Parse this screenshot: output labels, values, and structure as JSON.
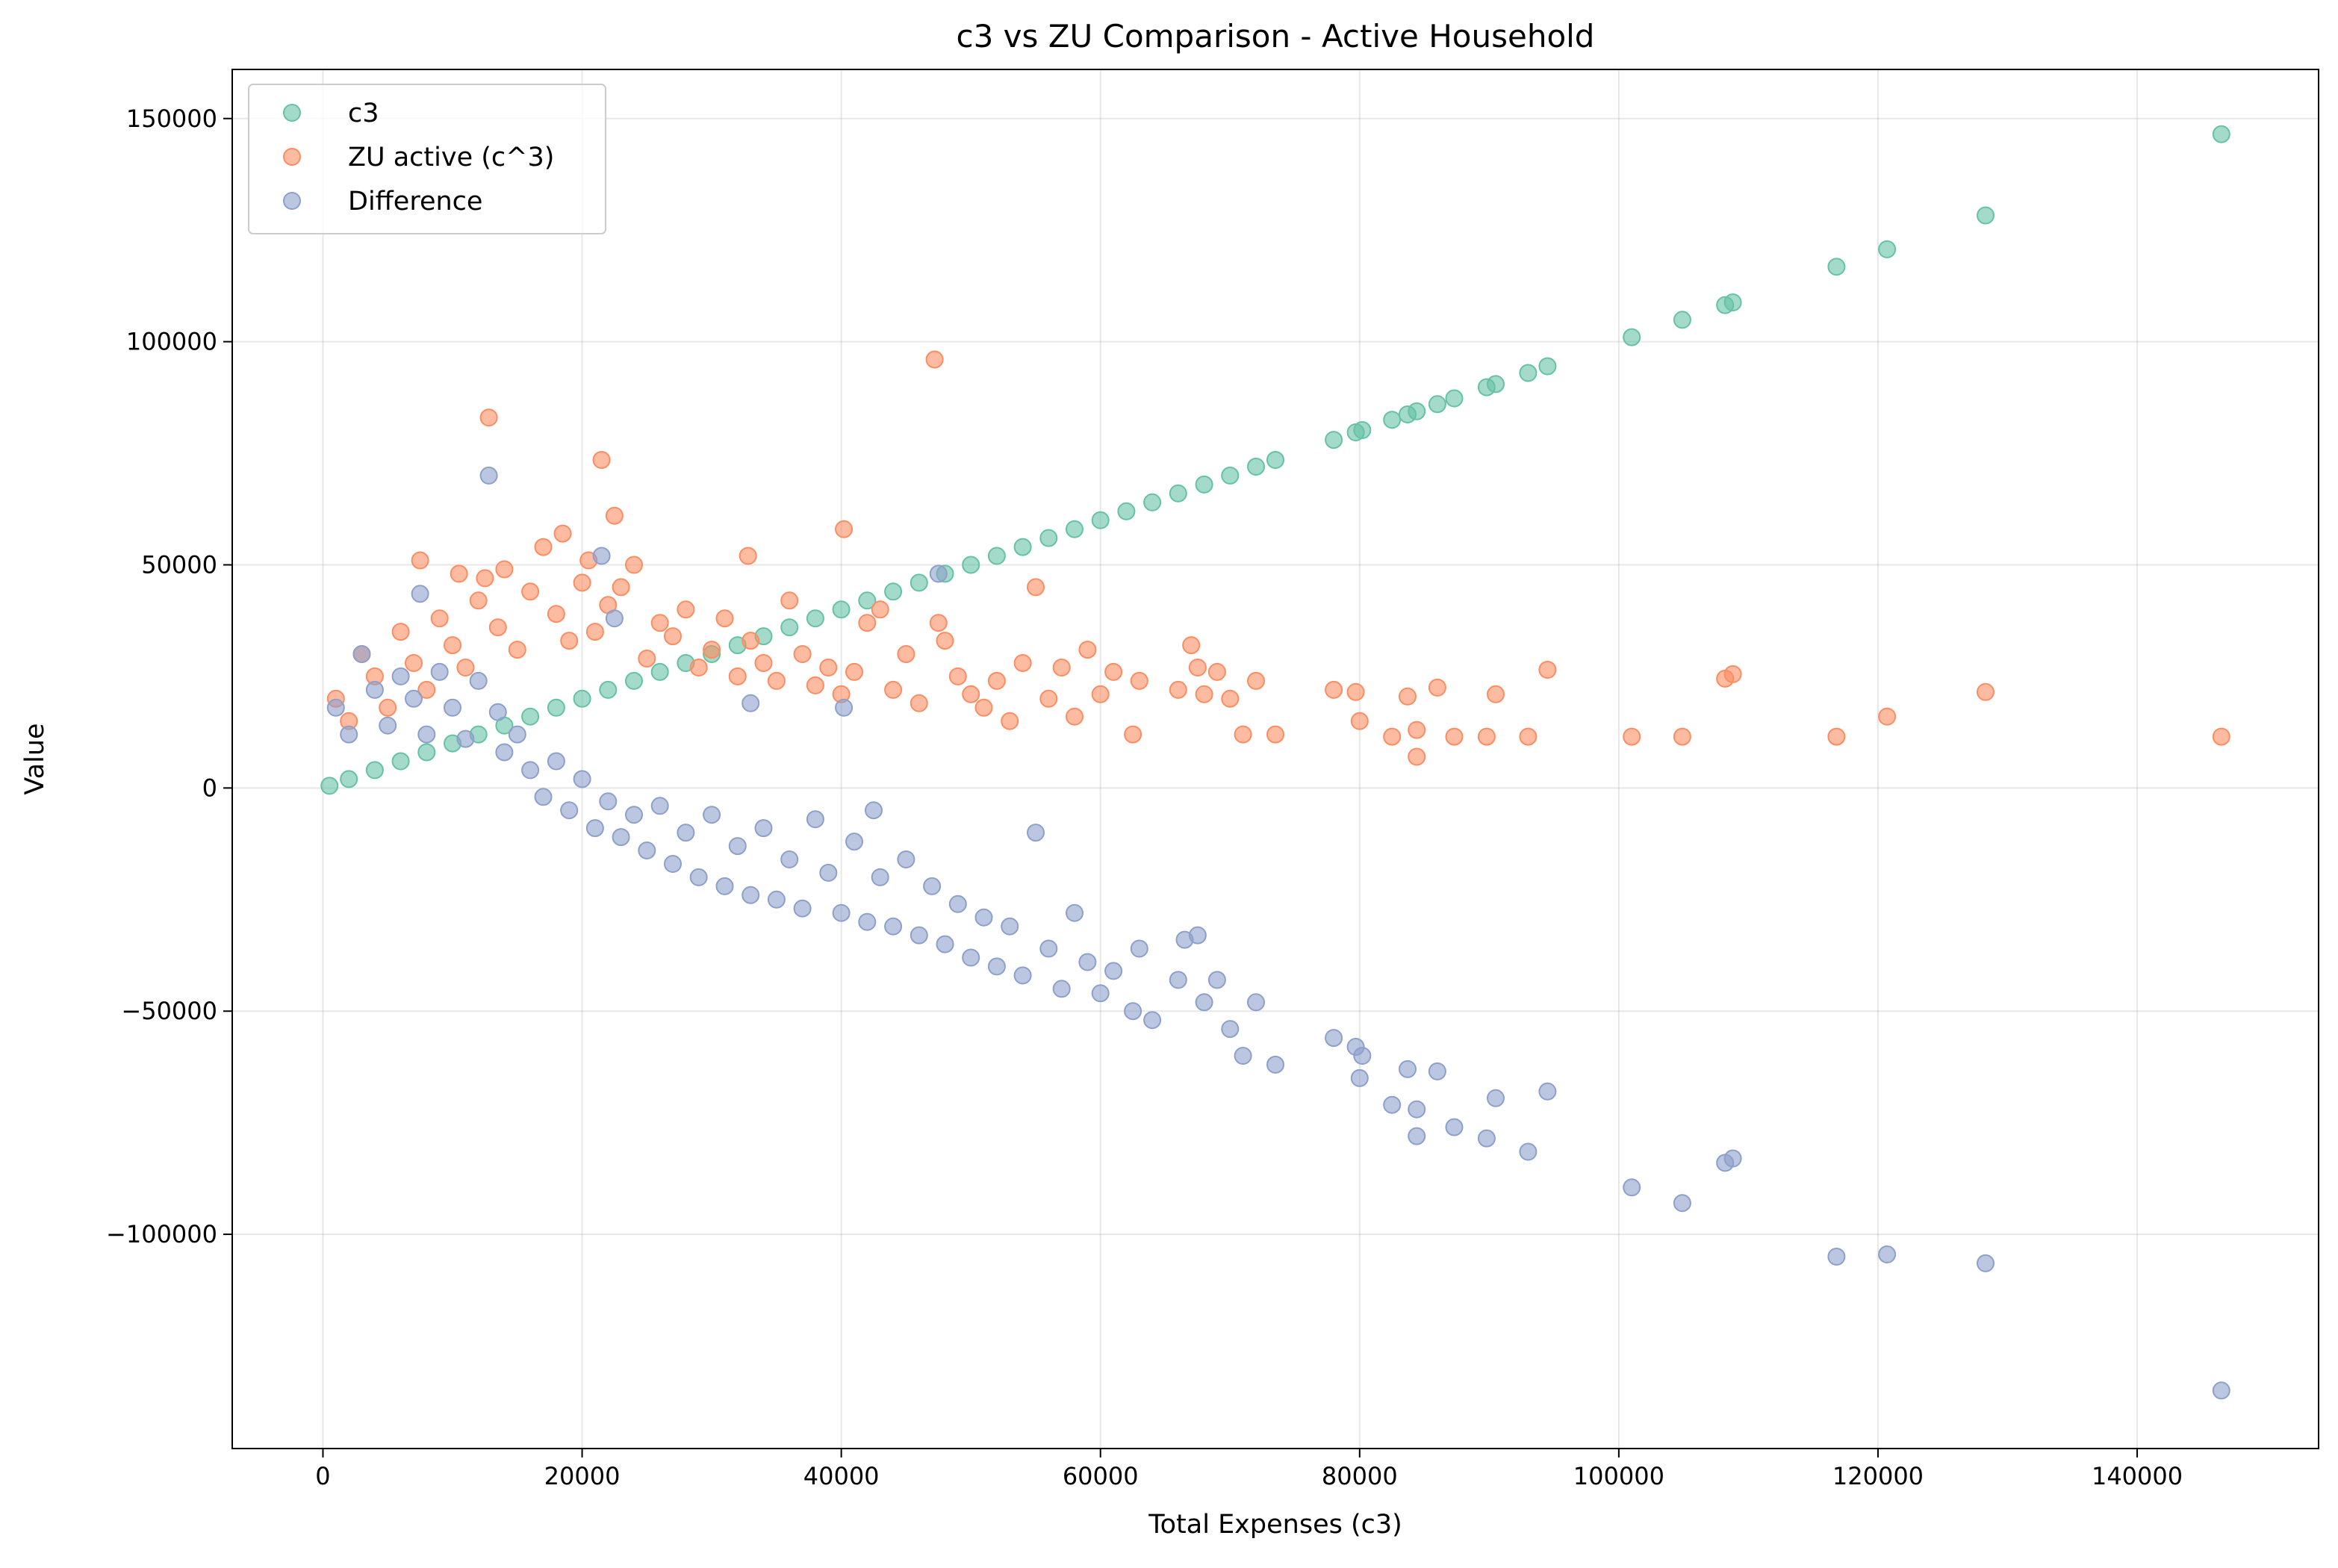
{
  "chart_data": {
    "type": "scatter",
    "title": "c3 vs ZU Comparison - Active Household",
    "xlabel": "Total Expenses (c3)",
    "ylabel": "Value",
    "xlim": [
      -7000,
      154000
    ],
    "ylim": [
      -148000,
      161000
    ],
    "xticks": [
      0,
      20000,
      40000,
      60000,
      80000,
      100000,
      120000,
      140000
    ],
    "yticks": [
      -100000,
      -50000,
      0,
      50000,
      100000,
      150000
    ],
    "xtick_labels": [
      "0",
      "20000",
      "40000",
      "60000",
      "80000",
      "100000",
      "120000",
      "140000"
    ],
    "ytick_labels": [
      "−100000",
      "−50000",
      "0",
      "50000",
      "100000",
      "150000"
    ],
    "grid": true,
    "legend_position": "top-left",
    "series": [
      {
        "name": "c3",
        "color": "#66c2a5",
        "points": [
          [
            500,
            500
          ],
          [
            2000,
            2000
          ],
          [
            4000,
            4000
          ],
          [
            6000,
            6000
          ],
          [
            8000,
            8000
          ],
          [
            10000,
            10000
          ],
          [
            12000,
            12000
          ],
          [
            14000,
            14000
          ],
          [
            16000,
            16000
          ],
          [
            18000,
            18000
          ],
          [
            20000,
            20000
          ],
          [
            22000,
            22000
          ],
          [
            24000,
            24000
          ],
          [
            26000,
            26000
          ],
          [
            28000,
            28000
          ],
          [
            30000,
            30000
          ],
          [
            32000,
            32000
          ],
          [
            34000,
            34000
          ],
          [
            36000,
            36000
          ],
          [
            38000,
            38000
          ],
          [
            40000,
            40000
          ],
          [
            42000,
            42000
          ],
          [
            44000,
            44000
          ],
          [
            46000,
            46000
          ],
          [
            48000,
            48000
          ],
          [
            50000,
            50000
          ],
          [
            52000,
            52000
          ],
          [
            54000,
            54000
          ],
          [
            56000,
            56000
          ],
          [
            58000,
            58000
          ],
          [
            60000,
            60000
          ],
          [
            62000,
            62000
          ],
          [
            64000,
            64000
          ],
          [
            66000,
            66000
          ],
          [
            68000,
            68000
          ],
          [
            70000,
            70000
          ],
          [
            72000,
            72000
          ],
          [
            73500,
            73500
          ],
          [
            78000,
            78000
          ],
          [
            79700,
            79700
          ],
          [
            80200,
            80200
          ],
          [
            82500,
            82500
          ],
          [
            83700,
            83700
          ],
          [
            84400,
            84400
          ],
          [
            86000,
            86000
          ],
          [
            87300,
            87300
          ],
          [
            89800,
            89800
          ],
          [
            90500,
            90500
          ],
          [
            93000,
            93000
          ],
          [
            94500,
            94500
          ],
          [
            101000,
            101000
          ],
          [
            104900,
            104900
          ],
          [
            108200,
            108200
          ],
          [
            108800,
            108800
          ],
          [
            116800,
            116800
          ],
          [
            120700,
            120700
          ],
          [
            128300,
            128300
          ],
          [
            146500,
            146500
          ]
        ]
      },
      {
        "name": "ZU active (c^3)",
        "color": "#fc8d62",
        "points": [
          [
            1000,
            20000
          ],
          [
            2000,
            15000
          ],
          [
            3000,
            30000
          ],
          [
            4000,
            25000
          ],
          [
            5000,
            18000
          ],
          [
            6000,
            35000
          ],
          [
            7000,
            28000
          ],
          [
            7500,
            51000
          ],
          [
            8000,
            22000
          ],
          [
            9000,
            38000
          ],
          [
            10000,
            32000
          ],
          [
            10500,
            48000
          ],
          [
            11000,
            27000
          ],
          [
            12000,
            42000
          ],
          [
            12500,
            47000
          ],
          [
            12800,
            83000
          ],
          [
            13500,
            36000
          ],
          [
            14000,
            49000
          ],
          [
            15000,
            31000
          ],
          [
            16000,
            44000
          ],
          [
            17000,
            54000
          ],
          [
            18000,
            39000
          ],
          [
            18500,
            57000
          ],
          [
            19000,
            33000
          ],
          [
            20000,
            46000
          ],
          [
            20500,
            51000
          ],
          [
            21000,
            35000
          ],
          [
            21500,
            73500
          ],
          [
            22000,
            41000
          ],
          [
            22500,
            61000
          ],
          [
            23000,
            45000
          ],
          [
            24000,
            50000
          ],
          [
            25000,
            29000
          ],
          [
            26000,
            37000
          ],
          [
            27000,
            34000
          ],
          [
            28000,
            40000
          ],
          [
            29000,
            27000
          ],
          [
            30000,
            31000
          ],
          [
            31000,
            38000
          ],
          [
            32000,
            25000
          ],
          [
            32800,
            52000
          ],
          [
            33000,
            33000
          ],
          [
            34000,
            28000
          ],
          [
            35000,
            24000
          ],
          [
            36000,
            42000
          ],
          [
            37000,
            30000
          ],
          [
            38000,
            23000
          ],
          [
            39000,
            27000
          ],
          [
            40000,
            21000
          ],
          [
            40200,
            58000
          ],
          [
            41000,
            26000
          ],
          [
            42000,
            37000
          ],
          [
            43000,
            40000
          ],
          [
            44000,
            22000
          ],
          [
            45000,
            30000
          ],
          [
            46000,
            19000
          ],
          [
            47200,
            96000
          ],
          [
            47500,
            37000
          ],
          [
            48000,
            33000
          ],
          [
            49000,
            25000
          ],
          [
            50000,
            21000
          ],
          [
            51000,
            18000
          ],
          [
            52000,
            24000
          ],
          [
            53000,
            15000
          ],
          [
            54000,
            28000
          ],
          [
            55000,
            45000
          ],
          [
            56000,
            20000
          ],
          [
            57000,
            27000
          ],
          [
            58000,
            16000
          ],
          [
            59000,
            31000
          ],
          [
            60000,
            21000
          ],
          [
            61000,
            26000
          ],
          [
            62500,
            12000
          ],
          [
            63000,
            24000
          ],
          [
            66000,
            22000
          ],
          [
            67000,
            32000
          ],
          [
            67500,
            27000
          ],
          [
            68000,
            21000
          ],
          [
            69000,
            26000
          ],
          [
            70000,
            20000
          ],
          [
            71000,
            12000
          ],
          [
            72000,
            24000
          ],
          [
            73500,
            12000
          ],
          [
            78000,
            22000
          ],
          [
            79700,
            21500
          ],
          [
            80000,
            15000
          ],
          [
            82500,
            11500
          ],
          [
            83700,
            20500
          ],
          [
            84400,
            13000
          ],
          [
            84400,
            7000
          ],
          [
            86000,
            22500
          ],
          [
            87300,
            11500
          ],
          [
            89800,
            11500
          ],
          [
            90500,
            21000
          ],
          [
            93000,
            11500
          ],
          [
            94500,
            26500
          ],
          [
            101000,
            11500
          ],
          [
            104900,
            11500
          ],
          [
            108200,
            24500
          ],
          [
            108800,
            25500
          ],
          [
            116800,
            11500
          ],
          [
            120700,
            16000
          ],
          [
            128300,
            21500
          ],
          [
            146500,
            11500
          ]
        ]
      },
      {
        "name": "Difference",
        "color": "#8da0cb",
        "points": [
          [
            1000,
            18000
          ],
          [
            2000,
            12000
          ],
          [
            3000,
            30000
          ],
          [
            4000,
            22000
          ],
          [
            5000,
            14000
          ],
          [
            6000,
            25000
          ],
          [
            7000,
            20000
          ],
          [
            7500,
            43500
          ],
          [
            8000,
            12000
          ],
          [
            9000,
            26000
          ],
          [
            10000,
            18000
          ],
          [
            11000,
            11000
          ],
          [
            12000,
            24000
          ],
          [
            12800,
            70000
          ],
          [
            13500,
            17000
          ],
          [
            14000,
            8000
          ],
          [
            15000,
            12000
          ],
          [
            16000,
            4000
          ],
          [
            17000,
            -2000
          ],
          [
            18000,
            6000
          ],
          [
            19000,
            -5000
          ],
          [
            20000,
            2000
          ],
          [
            21000,
            -9000
          ],
          [
            21500,
            52000
          ],
          [
            22000,
            -3000
          ],
          [
            22500,
            38000
          ],
          [
            23000,
            -11000
          ],
          [
            24000,
            -6000
          ],
          [
            25000,
            -14000
          ],
          [
            26000,
            -4000
          ],
          [
            27000,
            -17000
          ],
          [
            28000,
            -10000
          ],
          [
            29000,
            -20000
          ],
          [
            30000,
            -6000
          ],
          [
            31000,
            -22000
          ],
          [
            32000,
            -13000
          ],
          [
            33000,
            -24000
          ],
          [
            33000,
            19000
          ],
          [
            34000,
            -9000
          ],
          [
            35000,
            -25000
          ],
          [
            36000,
            -16000
          ],
          [
            37000,
            -27000
          ],
          [
            38000,
            -7000
          ],
          [
            39000,
            -19000
          ],
          [
            40000,
            -28000
          ],
          [
            40200,
            18000
          ],
          [
            41000,
            -12000
          ],
          [
            42000,
            -30000
          ],
          [
            42500,
            -5000
          ],
          [
            43000,
            -20000
          ],
          [
            44000,
            -31000
          ],
          [
            45000,
            -16000
          ],
          [
            46000,
            -33000
          ],
          [
            47000,
            -22000
          ],
          [
            47500,
            48000
          ],
          [
            48000,
            -35000
          ],
          [
            49000,
            -26000
          ],
          [
            50000,
            -38000
          ],
          [
            51000,
            -29000
          ],
          [
            52000,
            -40000
          ],
          [
            53000,
            -31000
          ],
          [
            54000,
            -42000
          ],
          [
            55000,
            -10000
          ],
          [
            56000,
            -36000
          ],
          [
            57000,
            -45000
          ],
          [
            58000,
            -28000
          ],
          [
            59000,
            -39000
          ],
          [
            60000,
            -46000
          ],
          [
            61000,
            -41000
          ],
          [
            62500,
            -50000
          ],
          [
            63000,
            -36000
          ],
          [
            64000,
            -52000
          ],
          [
            66000,
            -43000
          ],
          [
            66500,
            -34000
          ],
          [
            67500,
            -33000
          ],
          [
            68000,
            -48000
          ],
          [
            69000,
            -43000
          ],
          [
            70000,
            -54000
          ],
          [
            71000,
            -60000
          ],
          [
            72000,
            -48000
          ],
          [
            73500,
            -62000
          ],
          [
            78000,
            -56000
          ],
          [
            79700,
            -58000
          ],
          [
            80000,
            -65000
          ],
          [
            80200,
            -60000
          ],
          [
            82500,
            -71000
          ],
          [
            83700,
            -63000
          ],
          [
            84400,
            -78000
          ],
          [
            84400,
            -72000
          ],
          [
            86000,
            -63500
          ],
          [
            87300,
            -76000
          ],
          [
            89800,
            -78500
          ],
          [
            90500,
            -69500
          ],
          [
            93000,
            -81500
          ],
          [
            94500,
            -68000
          ],
          [
            101000,
            -89500
          ],
          [
            104900,
            -93000
          ],
          [
            108200,
            -84000
          ],
          [
            108800,
            -83000
          ],
          [
            116800,
            -105000
          ],
          [
            120700,
            -104500
          ],
          [
            128300,
            -106500
          ],
          [
            146500,
            -135000
          ]
        ]
      }
    ]
  }
}
